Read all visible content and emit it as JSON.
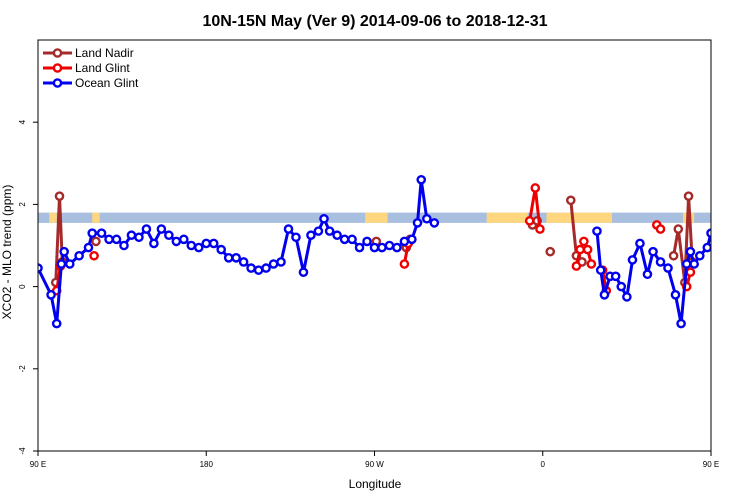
{
  "chart_data": {
    "type": "line",
    "title": "10N-15N May (Ver 9)   2014-09-06 to 2018-12-31",
    "xlabel": "Longitude",
    "ylabel": "XCO2 - MLO trend (ppm)",
    "xlim": [
      90,
      450
    ],
    "ylim": [
      -4,
      6
    ],
    "x_ticks": [
      {
        "value": 90,
        "label": "90 E"
      },
      {
        "value": 180,
        "label": "180"
      },
      {
        "value": 270,
        "label": "90 W"
      },
      {
        "value": 360,
        "label": "0"
      },
      {
        "value": 450,
        "label": "90 E"
      },
      {
        "value": 540,
        "label": "180"
      }
    ],
    "y_ticks": [
      {
        "value": -4,
        "label": "-4"
      },
      {
        "value": -2,
        "label": "-2"
      },
      {
        "value": 0,
        "label": "0"
      },
      {
        "value": 2,
        "label": "2"
      },
      {
        "value": 4,
        "label": "4"
      }
    ],
    "grid": false,
    "legend_position": "top-left",
    "colors": {
      "land_nadir": "#a52a2a",
      "land_glint": "#ee0000",
      "ocean_glint": "#0000ee",
      "band_land": "#ffd680",
      "band_ocean": "#a9bfe0"
    },
    "surface_band": {
      "y_low": 1.55,
      "y_high": 1.8,
      "land_ranges": [
        [
          96,
          100
        ],
        [
          119,
          123
        ],
        [
          265,
          277
        ],
        [
          330,
          352
        ],
        [
          362,
          397
        ],
        [
          435,
          441
        ],
        [
          461,
          465
        ]
      ]
    },
    "series": [
      {
        "name": "Land Nadir",
        "color": "#a52a2a",
        "segments": [
          [
            [
              99.5,
              0.1
            ],
            [
              101.5,
              2.2
            ],
            [
              103,
              0.6
            ]
          ],
          [
            [
              121,
              1.1
            ]
          ],
          [
            [
              271,
              1.1
            ]
          ],
          [
            [
              287,
              0.95
            ],
            [
              289,
              1.15
            ]
          ],
          [
            [
              354.5,
              1.5
            ],
            [
              357,
              1.6
            ]
          ],
          [
            [
              364,
              0.85
            ]
          ],
          [
            [
              375,
              2.1
            ],
            [
              378,
              0.75
            ],
            [
              381,
              0.6
            ]
          ],
          [
            [
              430,
              0.75
            ],
            [
              432.5,
              1.4
            ],
            [
              436,
              0.1
            ],
            [
              438,
              2.2
            ],
            [
              440,
              0.6
            ]
          ],
          [
            [
              458,
              1.1
            ]
          ]
        ]
      },
      {
        "name": "Land Glint",
        "color": "#ee0000",
        "segments": [
          [
            [
              100,
              -0.1
            ],
            [
              102,
              0.5
            ]
          ],
          [
            [
              120,
              0.75
            ]
          ],
          [
            [
              286,
              0.55
            ],
            [
              288,
              1.05
            ]
          ],
          [
            [
              353,
              1.6
            ],
            [
              356,
              2.4
            ],
            [
              358.5,
              1.4
            ]
          ],
          [
            [
              378,
              0.5
            ],
            [
              380,
              0.9
            ],
            [
              382,
              1.1
            ],
            [
              384,
              0.9
            ],
            [
              386,
              0.55
            ]
          ],
          [
            [
              392,
              0.4
            ],
            [
              394,
              -0.1
            ]
          ],
          [
            [
              421,
              1.5
            ],
            [
              423,
              1.4
            ]
          ],
          [
            [
              437,
              0.0
            ],
            [
              439,
              0.35
            ]
          ],
          [
            [
              458,
              0.75
            ]
          ]
        ]
      },
      {
        "name": "Ocean Glint",
        "color": "#0000ee",
        "segments": [
          [
            [
              90,
              0.45
            ],
            [
              97,
              -0.2
            ],
            [
              100,
              -0.9
            ],
            [
              102.5,
              0.55
            ],
            [
              104,
              0.85
            ],
            [
              107,
              0.55
            ],
            [
              112,
              0.75
            ],
            [
              117,
              0.95
            ],
            [
              119,
              1.3
            ],
            [
              124,
              1.3
            ],
            [
              128,
              1.15
            ],
            [
              132,
              1.15
            ],
            [
              136,
              1.0
            ],
            [
              140,
              1.25
            ],
            [
              144,
              1.2
            ],
            [
              148,
              1.4
            ],
            [
              152,
              1.05
            ],
            [
              156,
              1.4
            ],
            [
              160,
              1.25
            ],
            [
              164,
              1.1
            ],
            [
              168,
              1.15
            ],
            [
              172,
              1.0
            ],
            [
              176,
              0.95
            ],
            [
              180,
              1.05
            ],
            [
              184,
              1.05
            ],
            [
              188,
              0.9
            ],
            [
              192,
              0.7
            ],
            [
              196,
              0.7
            ],
            [
              200,
              0.6
            ],
            [
              204,
              0.45
            ],
            [
              208,
              0.4
            ],
            [
              212,
              0.45
            ],
            [
              216,
              0.55
            ],
            [
              220,
              0.6
            ],
            [
              224,
              1.4
            ],
            [
              228,
              1.2
            ],
            [
              232,
              0.35
            ],
            [
              236,
              1.25
            ],
            [
              240,
              1.35
            ],
            [
              243,
              1.65
            ],
            [
              246,
              1.35
            ],
            [
              250,
              1.25
            ],
            [
              254,
              1.15
            ],
            [
              258,
              1.15
            ],
            [
              262,
              0.95
            ],
            [
              266,
              1.1
            ],
            [
              270,
              0.95
            ],
            [
              274,
              0.95
            ],
            [
              278,
              1.0
            ],
            [
              282,
              0.95
            ],
            [
              286,
              1.1
            ],
            [
              290,
              1.15
            ],
            [
              293,
              1.55
            ],
            [
              295,
              2.6
            ],
            [
              298,
              1.65
            ],
            [
              302,
              1.55
            ]
          ],
          [
            [
              389,
              1.35
            ],
            [
              391,
              0.4
            ],
            [
              393,
              -0.2
            ],
            [
              396,
              0.25
            ],
            [
              399,
              0.25
            ],
            [
              402,
              -0.0
            ],
            [
              405,
              -0.25
            ],
            [
              408,
              0.65
            ],
            [
              412,
              1.05
            ],
            [
              416,
              0.3
            ],
            [
              419,
              0.85
            ],
            [
              423,
              0.6
            ],
            [
              427,
              0.45
            ],
            [
              431,
              -0.2
            ],
            [
              434,
              -0.9
            ],
            [
              437,
              0.55
            ],
            [
              439,
              0.85
            ],
            [
              441,
              0.55
            ],
            [
              444,
              0.75
            ],
            [
              448,
              0.95
            ],
            [
              450,
              1.3
            ]
          ]
        ]
      }
    ]
  }
}
